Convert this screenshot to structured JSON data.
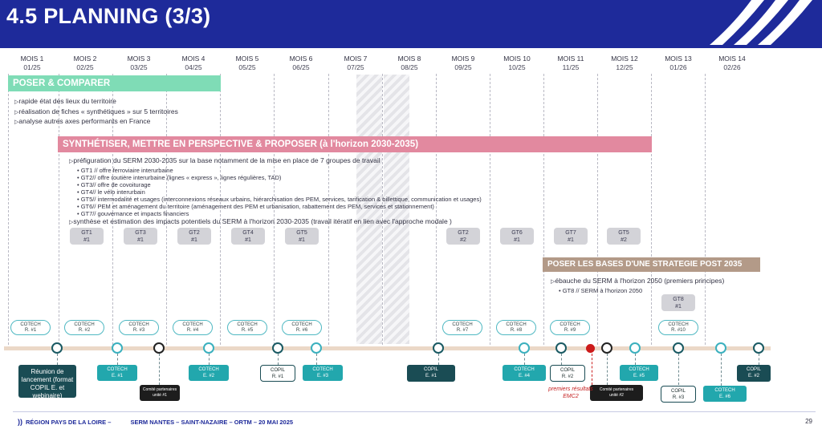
{
  "header": {
    "title": "4.5 PLANNING (3/3)"
  },
  "months": [
    {
      "label": "MOIS 1",
      "date": "01/25"
    },
    {
      "label": "MOIS 2",
      "date": "02/25"
    },
    {
      "label": "MOIS 3",
      "date": "03/25"
    },
    {
      "label": "MOIS 4",
      "date": "04/25"
    },
    {
      "label": "MOIS 5",
      "date": "05/25"
    },
    {
      "label": "MOIS 6",
      "date": "06/25"
    },
    {
      "label": "MOIS 7",
      "date": "07/25"
    },
    {
      "label": "MOIS 8",
      "date": "08/25"
    },
    {
      "label": "MOIS 9",
      "date": "09/25"
    },
    {
      "label": "MOIS 10",
      "date": "10/25"
    },
    {
      "label": "MOIS 11",
      "date": "11/25"
    },
    {
      "label": "MOIS 12",
      "date": "12/25"
    },
    {
      "label": "MOIS 13",
      "date": "01/26"
    },
    {
      "label": "MOIS 14",
      "date": "02/26"
    }
  ],
  "phases": {
    "poser": "POSER & COMPARER",
    "synth": "SYNTHÉTISER, METTRE EN PERSPECTIVE & PROPOSER (à l'horizon 2030-2035)",
    "post": "POSER LES BASES D'UNE STRATEGIE POST 2035"
  },
  "poser_bullets": [
    "rapide état des lieux du territoire",
    "réalisation de fiches « synthétiques » sur 5 territoires",
    "analyse autres axes performants en France"
  ],
  "synth_bullets": {
    "intro": "préfiguration du SERM 2030-2035 sur la base notamment de la mise en place de 7 groupes de travail",
    "groups": [
      "GT1 // offre ferroviaire interurbaine",
      "GT2// offre routière interurbaine (lignes « express », lignes régulières, TAD)",
      "GT3// offre de covoiturage",
      "GT4// le vélo interurbain",
      "GT5// intermodalité et usages (interconnexions réseaux urbains, hiérarchisation des PEM, services, tarification & billettique, communication et usages)",
      "GT6// PEM et aménagement du territoire (aménagement des PEM et urbanisation, rabattement des PEM, services et stationnement)",
      "GT7// gouvernance et impacts financiers"
    ],
    "outro": "synthèse et estimation des impacts potentiels du SERM à l'horizon 2030-2035 (travail itératif en lien avec l'approche modale )"
  },
  "post_bullets": {
    "main": "ébauche du SERM à l'horizon 2050 (premiers principes)",
    "sub": "GT8 // SERM à l'horizon 2050"
  },
  "gt_boxes": [
    {
      "name": "GT1",
      "num": "#1"
    },
    {
      "name": "GT3",
      "num": "#1"
    },
    {
      "name": "GT2",
      "num": "#1"
    },
    {
      "name": "GT4",
      "num": "#1"
    },
    {
      "name": "GT5",
      "num": "#1"
    },
    {
      "name": "GT2",
      "num": "#2"
    },
    {
      "name": "GT6",
      "num": "#1"
    },
    {
      "name": "GT7",
      "num": "#1"
    },
    {
      "name": "GT5",
      "num": "#2"
    },
    {
      "name": "GT8",
      "num": "#1"
    }
  ],
  "cotech_r": [
    {
      "label": "COTECH",
      "num": "R. #1"
    },
    {
      "label": "COTECH",
      "num": "R. #2"
    },
    {
      "label": "COTECH",
      "num": "R. #3"
    },
    {
      "label": "COTECH",
      "num": "R. #4"
    },
    {
      "label": "COTECH",
      "num": "R. #5"
    },
    {
      "label": "COTECH",
      "num": "R. #6"
    },
    {
      "label": "COTECH",
      "num": "R. #7"
    },
    {
      "label": "COTECH",
      "num": "R. #8"
    },
    {
      "label": "COTECH",
      "num": "R. #9"
    },
    {
      "label": "COTECH",
      "num": "R. #10"
    }
  ],
  "events": {
    "launch": "Réunion de lancement (format COPIL E. et webinaire)",
    "cotech_e1": {
      "label": "COTECH",
      "num": "E. #1"
    },
    "comite1": {
      "label": "Comité partenaires",
      "num": "unité #1"
    },
    "cotech_e2": {
      "label": "COTECH",
      "num": "E. #2"
    },
    "copil_r1": {
      "label": "COPIL",
      "num": "R. #1"
    },
    "cotech_e3": {
      "label": "COTECH",
      "num": "E. #3"
    },
    "copil_e1": {
      "label": "COPIL",
      "num": "E. #1"
    },
    "cotech_e4": {
      "label": "COTECH",
      "num": "E. #4"
    },
    "copil_r2": {
      "label": "COPIL",
      "num": "R. #2"
    },
    "comite2": {
      "label": "Comité partenaires",
      "num": "unité #2"
    },
    "cotech_e5": {
      "label": "COTECH",
      "num": "E. #5"
    },
    "copil_r3": {
      "label": "COPIL",
      "num": "R. #3"
    },
    "cotech_e6": {
      "label": "COTECH",
      "num": "E. #6"
    },
    "copil_e2": {
      "label": "COPIL",
      "num": "E. #2"
    },
    "emc2": "premiers résultats EMC2"
  },
  "footer": {
    "mark": "))",
    "region": "RÉGION PAYS DE LA LOIRE –",
    "project": "SERM NANTES – SAINT-NAZAIRE – ORTM – 20 MAI 2025",
    "page": "29"
  },
  "colors": {
    "header": "#1e2a9a",
    "poser": "#7fdcb6",
    "synth": "#e2899f",
    "post": "#b39a88",
    "teal": "#22a7ad",
    "dark_teal": "#1a4c54",
    "timeline": "#ebd8c7",
    "red": "#cc1a1a"
  }
}
